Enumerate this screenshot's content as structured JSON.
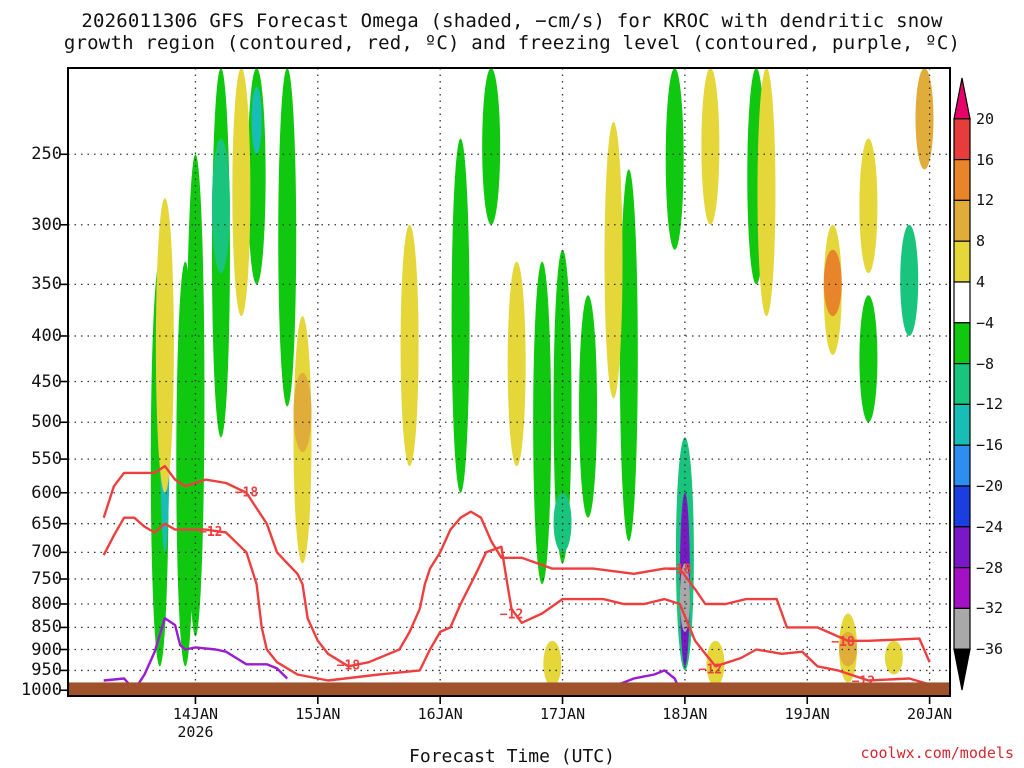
{
  "title": {
    "line1": "2026011306 GFS Forecast Omega (shaded, −cm/s) for KROC with dendritic snow",
    "line2": "growth region (contoured, red, ºC) and freezing level (contoured, purple, ºC)"
  },
  "footer": {
    "xlabel": "Forecast Time (UTC)",
    "credit": "coolwx.com/models"
  },
  "chart_data": {
    "type": "heatmap",
    "ylabel": "",
    "xlabel": "Forecast Time (UTC)",
    "y_axis": {
      "scale": "log-pressure",
      "reversed": true,
      "range_hpa": [
        1015,
        200
      ],
      "ticks": [
        250,
        300,
        350,
        400,
        450,
        500,
        550,
        600,
        650,
        700,
        750,
        800,
        850,
        900,
        950,
        1000
      ]
    },
    "x_axis": {
      "range_hours_since_init": [
        0,
        162
      ],
      "ticks": [
        {
          "label": "14JAN",
          "sublabel": "2026",
          "hour": 18
        },
        {
          "label": "15JAN",
          "hour": 42
        },
        {
          "label": "16JAN",
          "hour": 66
        },
        {
          "label": "17JAN",
          "hour": 90
        },
        {
          "label": "18JAN",
          "hour": 114
        },
        {
          "label": "19JAN",
          "hour": 138
        },
        {
          "label": "20JAN",
          "hour": 162
        }
      ]
    },
    "grid": true,
    "colorbar": {
      "levels": [
        "20",
        "16",
        "12",
        "8",
        "4",
        "−4",
        "−8",
        "−12",
        "−16",
        "−20",
        "−24",
        "−28",
        "−32",
        "−36"
      ],
      "colors": [
        "#e8006a",
        "#e73c3c",
        "#e8852a",
        "#e0ad3a",
        "#e5d63a",
        "#ffffff",
        "#10c810",
        "#19c47c",
        "#18bdb6",
        "#2d8ef0",
        "#1a3ee0",
        "#7a18c8",
        "#a411c4",
        "#a8a8a8",
        "#000000"
      ]
    },
    "omega_regions": [
      {
        "hour": 11,
        "p_top": 330,
        "p_bot": 940,
        "value": -8
      },
      {
        "hour": 12,
        "p_top": 340,
        "p_bot": 700,
        "value": -16
      },
      {
        "hour": 12,
        "p_top": 370,
        "p_bot": 470,
        "value": -20
      },
      {
        "hour": 16,
        "p_top": 330,
        "p_bot": 940,
        "value": -8
      },
      {
        "hour": 18,
        "p_top": 250,
        "p_bot": 870,
        "value": -8
      },
      {
        "hour": 23,
        "p_top": 200,
        "p_bot": 520,
        "value": -8
      },
      {
        "hour": 23,
        "p_top": 240,
        "p_bot": 340,
        "value": -12
      },
      {
        "hour": 30,
        "p_top": 200,
        "p_bot": 350,
        "value": -8
      },
      {
        "hour": 30,
        "p_top": 210,
        "p_bot": 250,
        "value": -16
      },
      {
        "hour": 36,
        "p_top": 200,
        "p_bot": 480,
        "value": -8
      },
      {
        "hour": 70,
        "p_top": 240,
        "p_bot": 600,
        "value": -8
      },
      {
        "hour": 76,
        "p_top": 200,
        "p_bot": 300,
        "value": -8
      },
      {
        "hour": 86,
        "p_top": 330,
        "p_bot": 760,
        "value": -8
      },
      {
        "hour": 90,
        "p_top": 320,
        "p_bot": 720,
        "value": -8
      },
      {
        "hour": 90,
        "p_top": 600,
        "p_bot": 700,
        "value": -12
      },
      {
        "hour": 95,
        "p_top": 360,
        "p_bot": 640,
        "value": -8
      },
      {
        "hour": 103,
        "p_top": 260,
        "p_bot": 680,
        "value": -8
      },
      {
        "hour": 112,
        "p_top": 200,
        "p_bot": 320,
        "value": -8
      },
      {
        "hour": 114,
        "p_top": 520,
        "p_bot": 950,
        "value": -12
      },
      {
        "hour": 114,
        "p_top": 600,
        "p_bot": 940,
        "value": -24
      },
      {
        "hour": 114,
        "p_top": 720,
        "p_bot": 860,
        "value": -32
      },
      {
        "hour": 128,
        "p_top": 200,
        "p_bot": 350,
        "value": -8
      },
      {
        "hour": 150,
        "p_top": 360,
        "p_bot": 500,
        "value": -8
      },
      {
        "hour": 158,
        "p_top": 300,
        "p_bot": 400,
        "value": -12
      },
      {
        "hour": 12,
        "p_top": 280,
        "p_bot": 600,
        "value": 4
      },
      {
        "hour": 27,
        "p_top": 200,
        "p_bot": 380,
        "value": 4
      },
      {
        "hour": 39,
        "p_top": 380,
        "p_bot": 720,
        "value": 4
      },
      {
        "hour": 39,
        "p_top": 440,
        "p_bot": 540,
        "value": 8
      },
      {
        "hour": 60,
        "p_top": 300,
        "p_bot": 560,
        "value": 4
      },
      {
        "hour": 81,
        "p_top": 330,
        "p_bot": 560,
        "value": 4
      },
      {
        "hour": 100,
        "p_top": 230,
        "p_bot": 470,
        "value": 4
      },
      {
        "hour": 119,
        "p_top": 200,
        "p_bot": 300,
        "value": 4
      },
      {
        "hour": 130,
        "p_top": 200,
        "p_bot": 380,
        "value": 4
      },
      {
        "hour": 143,
        "p_top": 300,
        "p_bot": 420,
        "value": 4
      },
      {
        "hour": 143,
        "p_top": 320,
        "p_bot": 380,
        "value": 12
      },
      {
        "hour": 150,
        "p_top": 240,
        "p_bot": 340,
        "value": 4
      },
      {
        "hour": 88,
        "p_top": 880,
        "p_bot": 990,
        "value": 4
      },
      {
        "hour": 120,
        "p_top": 880,
        "p_bot": 990,
        "value": 4
      },
      {
        "hour": 146,
        "p_top": 820,
        "p_bot": 980,
        "value": 4
      },
      {
        "hour": 146,
        "p_top": 860,
        "p_bot": 940,
        "value": 8
      },
      {
        "hour": 155,
        "p_top": 880,
        "p_bot": 960,
        "value": 4
      },
      {
        "hour": 161,
        "p_top": 200,
        "p_bot": 260,
        "value": 8
      }
    ],
    "series": [
      {
        "name": "−12",
        "color": "#ee3f3f",
        "points": [
          [
            0,
            705
          ],
          [
            2,
            670
          ],
          [
            4,
            640
          ],
          [
            6,
            640
          ],
          [
            8,
            655
          ],
          [
            10,
            665
          ],
          [
            12,
            650
          ],
          [
            14,
            660
          ],
          [
            16,
            660
          ],
          [
            20,
            660
          ],
          [
            24,
            665
          ],
          [
            28,
            700
          ],
          [
            30,
            760
          ],
          [
            31,
            850
          ],
          [
            32,
            900
          ],
          [
            34,
            930
          ],
          [
            38,
            960
          ],
          [
            44,
            975
          ],
          [
            54,
            960
          ],
          [
            62,
            950
          ],
          [
            64,
            900
          ],
          [
            66,
            860
          ],
          [
            68,
            850
          ],
          [
            70,
            800
          ],
          [
            73,
            740
          ],
          [
            75,
            700
          ],
          [
            78,
            690
          ],
          [
            79,
            750
          ],
          [
            80,
            810
          ],
          [
            82,
            840
          ],
          [
            86,
            820
          ],
          [
            90,
            790
          ],
          [
            98,
            790
          ],
          [
            102,
            800
          ],
          [
            104,
            800
          ],
          [
            106,
            800
          ],
          [
            110,
            790
          ],
          [
            113,
            800
          ],
          [
            116,
            880
          ],
          [
            118,
            910
          ],
          [
            120,
            940
          ],
          [
            125,
            920
          ],
          [
            128,
            900
          ],
          [
            133,
            910
          ],
          [
            137,
            905
          ],
          [
            140,
            940
          ],
          [
            144,
            950
          ],
          [
            150,
            975
          ],
          [
            158,
            970
          ],
          [
            162,
            985
          ]
        ]
      },
      {
        "name": "−18",
        "color": "#ee3f3f",
        "points": [
          [
            0,
            640
          ],
          [
            2,
            590
          ],
          [
            4,
            570
          ],
          [
            6,
            570
          ],
          [
            10,
            570
          ],
          [
            12,
            560
          ],
          [
            14,
            580
          ],
          [
            16,
            590
          ],
          [
            20,
            580
          ],
          [
            24,
            585
          ],
          [
            28,
            600
          ],
          [
            32,
            650
          ],
          [
            34,
            700
          ],
          [
            36,
            720
          ],
          [
            38,
            740
          ],
          [
            39,
            760
          ],
          [
            40,
            830
          ],
          [
            42,
            880
          ],
          [
            44,
            910
          ],
          [
            48,
            940
          ],
          [
            52,
            930
          ],
          [
            58,
            900
          ],
          [
            60,
            860
          ],
          [
            62,
            810
          ],
          [
            63,
            760
          ],
          [
            64,
            730
          ],
          [
            66,
            700
          ],
          [
            68,
            660
          ],
          [
            70,
            640
          ],
          [
            72,
            630
          ],
          [
            74,
            640
          ],
          [
            76,
            680
          ],
          [
            78,
            710
          ],
          [
            82,
            710
          ],
          [
            88,
            730
          ],
          [
            96,
            730
          ],
          [
            104,
            740
          ],
          [
            110,
            730
          ],
          [
            113,
            730
          ],
          [
            116,
            770
          ],
          [
            118,
            800
          ],
          [
            122,
            800
          ],
          [
            126,
            790
          ],
          [
            132,
            790
          ],
          [
            134,
            850
          ],
          [
            140,
            850
          ],
          [
            146,
            880
          ],
          [
            150,
            880
          ],
          [
            160,
            875
          ],
          [
            162,
            930
          ]
        ]
      },
      {
        "name": "freezing",
        "color": "#9b1bd0",
        "points": [
          [
            0,
            975
          ],
          [
            4,
            970
          ],
          [
            6,
            1000
          ],
          [
            8,
            960
          ],
          [
            10,
            905
          ],
          [
            12,
            830
          ],
          [
            14,
            845
          ],
          [
            15,
            890
          ],
          [
            16,
            900
          ],
          [
            18,
            895
          ],
          [
            22,
            900
          ],
          [
            24,
            905
          ],
          [
            26,
            920
          ],
          [
            28,
            935
          ],
          [
            32,
            935
          ],
          [
            34,
            945
          ],
          [
            36,
            970
          ]
        ]
      },
      {
        "name": "freezing2",
        "color": "#9b1bd0",
        "points": [
          [
            100,
            990
          ],
          [
            104,
            970
          ],
          [
            108,
            960
          ],
          [
            110,
            950
          ],
          [
            112,
            970
          ],
          [
            113,
            1000
          ]
        ]
      }
    ],
    "contour_labels": [
      {
        "text": "−18",
        "hour": 28,
        "p": 598
      },
      {
        "text": "−12",
        "hour": 21,
        "p": 662
      },
      {
        "text": "−18",
        "hour": 48,
        "p": 935
      },
      {
        "text": "−12",
        "hour": 80,
        "p": 820
      },
      {
        "text": "−18",
        "hour": 113,
        "p": 730
      },
      {
        "text": "−12",
        "hour": 119,
        "p": 945
      },
      {
        "text": "−18",
        "hour": 145,
        "p": 880
      },
      {
        "text": "−12",
        "hour": 149,
        "p": 975
      }
    ],
    "ground": {
      "color": "#a0522d",
      "p_top": 980
    }
  }
}
